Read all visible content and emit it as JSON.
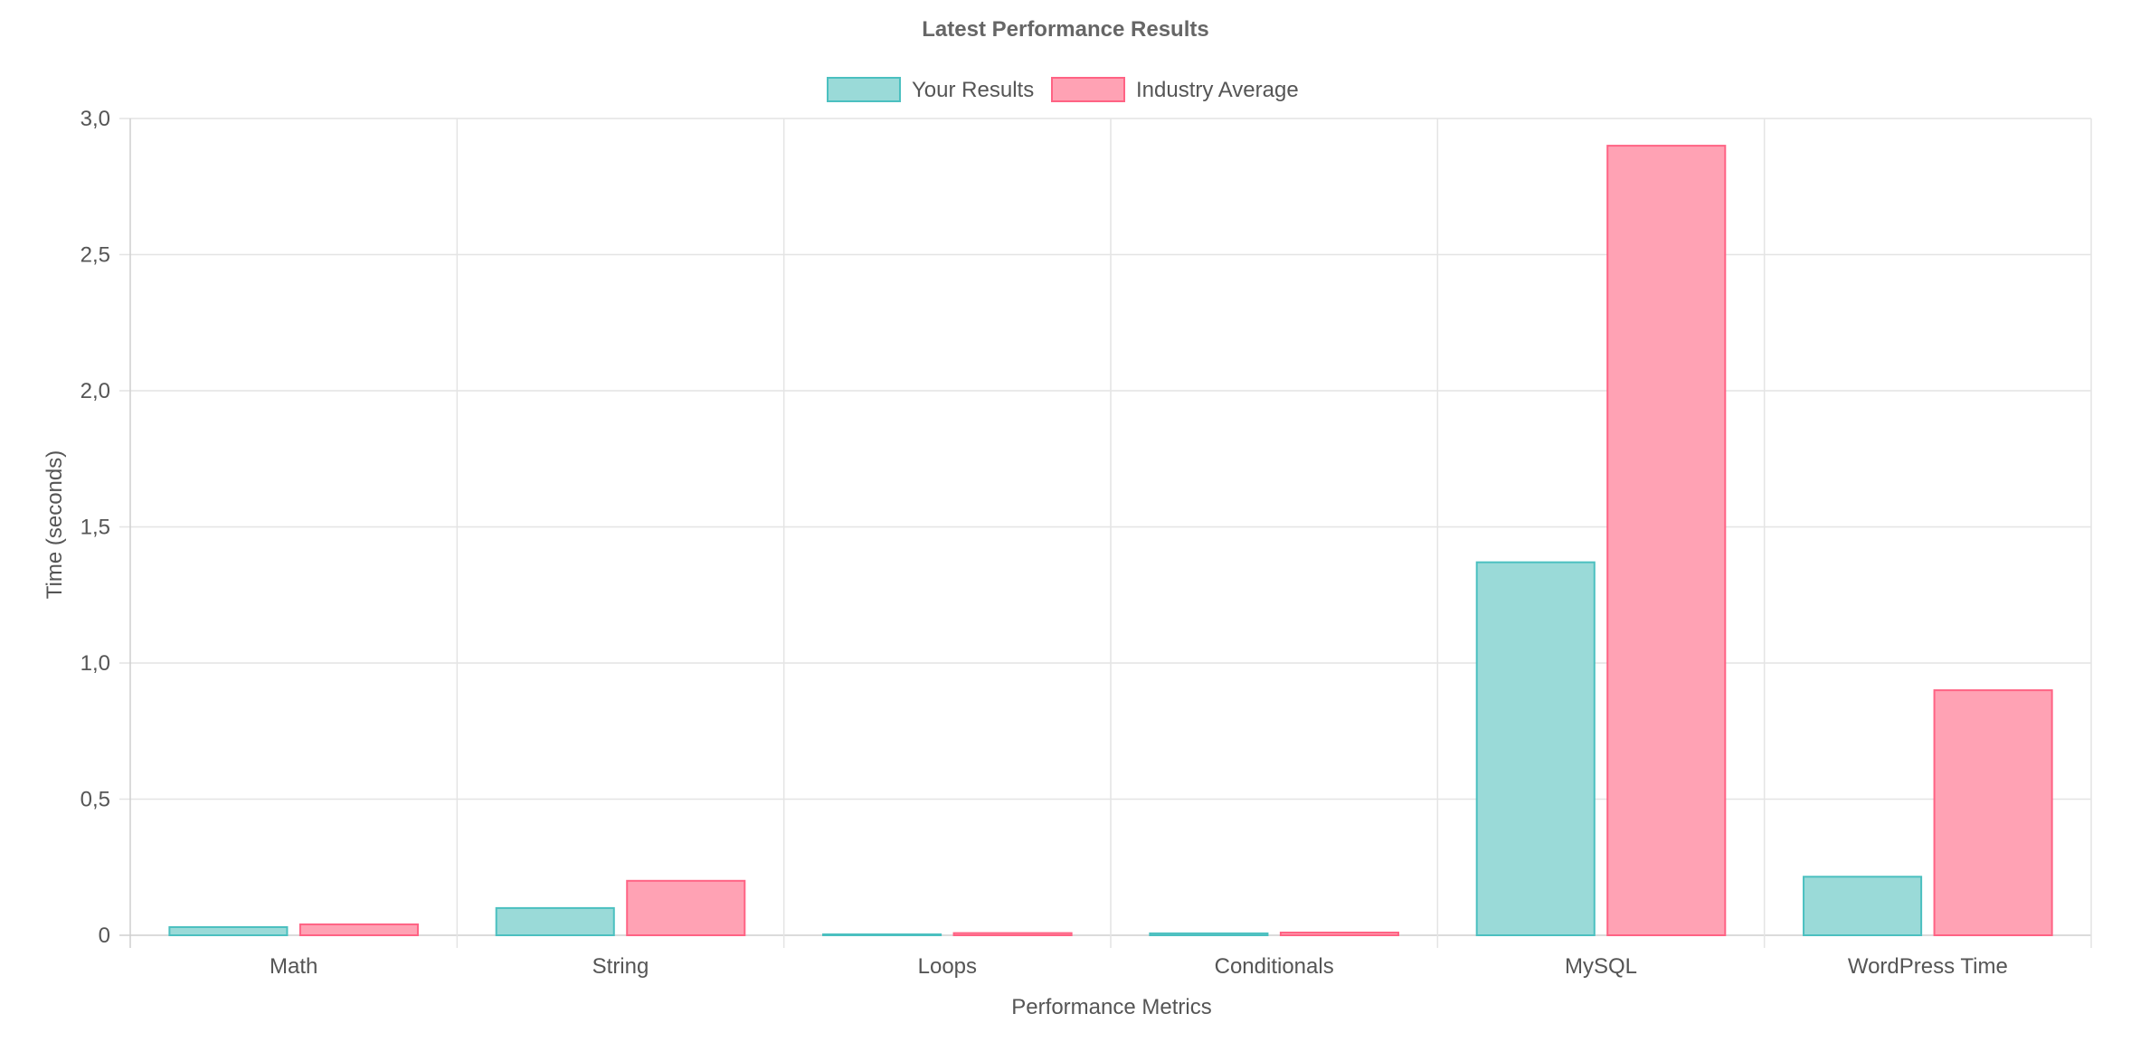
{
  "chart_data": {
    "type": "bar",
    "title": "Latest Performance Results",
    "xlabel": "Performance Metrics",
    "ylabel": "Time (seconds)",
    "categories": [
      "Math",
      "String",
      "Loops",
      "Conditionals",
      "MySQL",
      "WordPress Time"
    ],
    "series": [
      {
        "name": "Your Results",
        "values": [
          0.03,
          0.1,
          0.003,
          0.007,
          1.37,
          0.215
        ],
        "fill": "#9adad8",
        "stroke": "#4bc0c0"
      },
      {
        "name": "Industry Average",
        "values": [
          0.04,
          0.2,
          0.008,
          0.01,
          2.9,
          0.9
        ],
        "fill": "#ffa2b4",
        "stroke": "#ff6384"
      }
    ],
    "ylim": [
      0,
      3
    ],
    "yticks": [
      0,
      0.5,
      1,
      1.5,
      2,
      2.5,
      3
    ],
    "ytick_labels": [
      "0",
      "0,5",
      "1,0",
      "1,5",
      "2,0",
      "2,5",
      "3,0"
    ],
    "grid": true,
    "legend_position": "top-center"
  }
}
